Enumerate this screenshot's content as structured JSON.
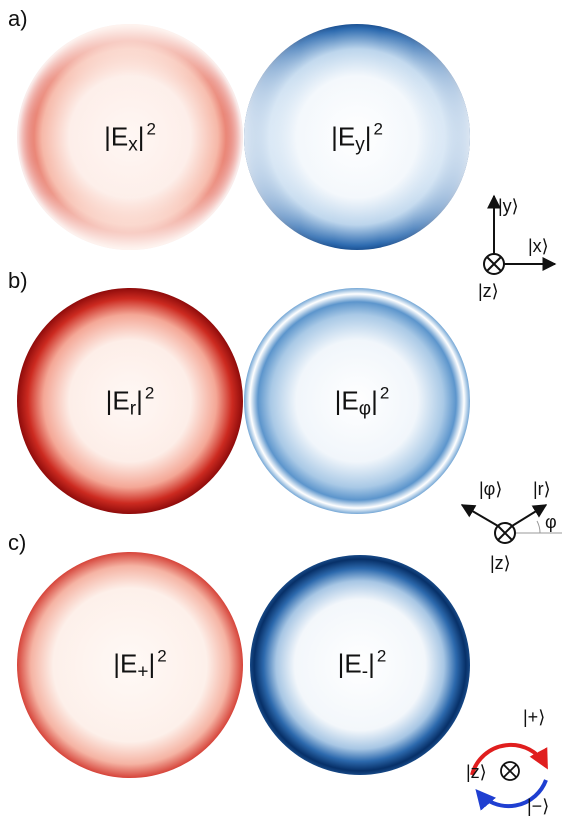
{
  "panels": [
    {
      "label": "a)",
      "left": {
        "base": "|E",
        "sub": "x",
        "close": "|",
        "sup": "2"
      },
      "right": {
        "base": "|E",
        "sub": "y",
        "close": "|",
        "sup": "2"
      }
    },
    {
      "label": "b)",
      "left": {
        "base": "|E",
        "sub": "r",
        "close": "|",
        "sup": "2"
      },
      "right": {
        "base": "|E",
        "sub": "φ",
        "close": "|",
        "sup": "2"
      }
    },
    {
      "label": "c)",
      "left": {
        "base": "|E",
        "sub": "+",
        "close": "|",
        "sup": "2"
      },
      "right": {
        "base": "|E",
        "sub": "-",
        "close": "|",
        "sup": "2"
      }
    }
  ],
  "axes": {
    "cartesian": {
      "y": "|y⟩",
      "x": "|x⟩",
      "z": "|z⟩"
    },
    "polar": {
      "phi_vec": "|φ⟩",
      "r_vec": "|r⟩",
      "angle": "φ",
      "z": "|z⟩"
    },
    "circular": {
      "plus": "|+⟩",
      "minus": "|−⟩",
      "z": "|z⟩"
    }
  },
  "colors": {
    "red_dark": "#8c0a0a",
    "red_mid": "#d94a3a",
    "blue_dark": "#083a7a",
    "blue_mid": "#3a7bbf"
  }
}
